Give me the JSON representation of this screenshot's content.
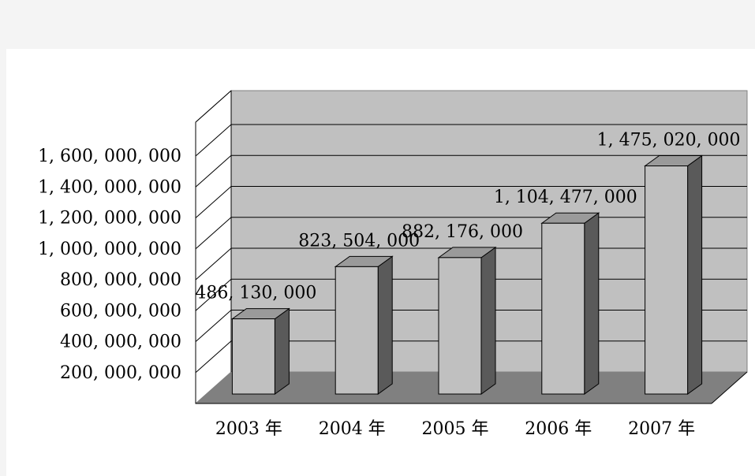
{
  "chart_data": {
    "type": "bar",
    "categories": [
      "2003 年",
      "2004 年",
      "2005 年",
      "2006 年",
      "2007 年"
    ],
    "values": [
      486130000,
      823504000,
      882176000,
      1104477000,
      1475020000
    ],
    "value_labels": [
      "486, 130, 000",
      "823, 504, 000",
      "882, 176, 000",
      "1, 104, 477, 000",
      "1, 475, 020, 000"
    ],
    "y_ticks": [
      200000000,
      400000000,
      600000000,
      800000000,
      1000000000,
      1200000000,
      1400000000,
      1600000000
    ],
    "y_tick_labels": [
      "200, 000, 000",
      "400, 000, 000",
      "600, 000, 000",
      "800, 000, 000",
      "1, 000, 000, 000",
      "1, 200, 000, 000",
      "1, 400, 000, 000",
      "1, 600, 000, 000"
    ],
    "ylim": [
      0,
      1600000000
    ],
    "grid": true,
    "legend": "none",
    "style": "3d",
    "colors": {
      "wall": "#c0c0c0",
      "floor": "#808080",
      "bar_front": "#c0c0c0",
      "bar_top": "#9a9a9a",
      "bar_side": "#5a5a5a",
      "grid": "#000000"
    }
  }
}
